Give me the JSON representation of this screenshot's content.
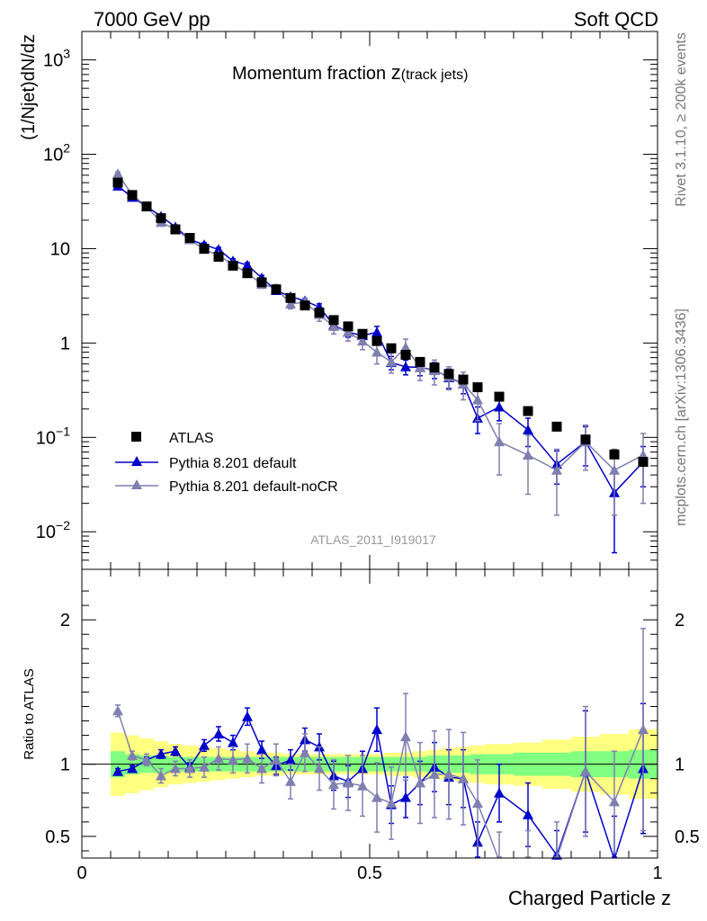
{
  "header": {
    "left": "7000 GeV pp",
    "right": "Soft QCD"
  },
  "side_labels": {
    "rivet": "Rivet 3.1.10, ≥ 200k events",
    "mcplots": "mcplots.cern.ch [arXiv:1306.3436]"
  },
  "main_panel": {
    "title_main": "Momentum fraction ",
    "title_z": "z",
    "title_sub": "(track jets)",
    "ylabel": "(1/Njet)dN/dz",
    "analysis_tag": "ATLAS_2011_I919017"
  },
  "ratio_panel": {
    "ylabel": "Ratio to ATLAS"
  },
  "xlabel": "Charged Particle z",
  "legend": [
    {
      "label": "ATLAS",
      "marker": "square",
      "color": "#000000"
    },
    {
      "label": "Pythia 8.201 default",
      "marker": "triangle",
      "color": "#0000cc"
    },
    {
      "label": "Pythia 8.201 default-noCR",
      "marker": "triangle",
      "color": "#7f7fb0"
    }
  ],
  "chart_data": [
    {
      "type": "line",
      "title": "Momentum fraction z(track jets)",
      "xlabel": "Charged Particle z",
      "ylabel": "(1/Njet)dN/dz",
      "yscale": "log",
      "xlim": [
        0,
        1
      ],
      "ylim": [
        0.004,
        2000
      ],
      "x_ticks": [
        {
          "value": 0,
          "label": "0"
        },
        {
          "value": 0.5,
          "label": "0.5"
        },
        {
          "value": 1,
          "label": "1"
        }
      ],
      "y_ticks": [
        {
          "value": 0.01,
          "label": "10",
          "exp": "−2"
        },
        {
          "value": 0.1,
          "label": "10",
          "exp": "−1"
        },
        {
          "value": 1,
          "label": "1",
          "exp": ""
        },
        {
          "value": 10,
          "label": "10",
          "exp": ""
        },
        {
          "value": 100,
          "label": "10",
          "exp": "2"
        },
        {
          "value": 1000,
          "label": "10",
          "exp": "3"
        }
      ],
      "x": [
        0.0625,
        0.0875,
        0.1125,
        0.1375,
        0.1625,
        0.1875,
        0.2125,
        0.2375,
        0.2625,
        0.2875,
        0.3125,
        0.3375,
        0.3625,
        0.3875,
        0.4125,
        0.4375,
        0.4625,
        0.4875,
        0.5125,
        0.5375,
        0.5625,
        0.5875,
        0.6125,
        0.6375,
        0.6625,
        0.6875,
        0.725,
        0.775,
        0.825,
        0.875,
        0.925,
        0.975
      ],
      "series": [
        {
          "name": "ATLAS",
          "color": "#000000",
          "marker": "square",
          "values": [
            50,
            37,
            28,
            21,
            16,
            13,
            10,
            8.2,
            6.6,
            5.5,
            4.4,
            3.7,
            3.0,
            2.5,
            2.1,
            1.75,
            1.5,
            1.25,
            1.05,
            0.88,
            0.75,
            0.63,
            0.55,
            0.47,
            0.41,
            0.34,
            0.27,
            0.19,
            0.13,
            0.095,
            0.066,
            0.055
          ]
        },
        {
          "name": "Pythia 8.201 default",
          "color": "#0000cc",
          "marker": "triangle",
          "values": [
            46,
            35,
            28,
            22,
            17,
            12.5,
            11,
            9.8,
            7.4,
            6.7,
            4.9,
            3.6,
            3.1,
            2.8,
            2.4,
            1.55,
            1.3,
            1.2,
            1.3,
            0.62,
            0.56,
            0.55,
            0.52,
            0.43,
            0.37,
            0.16,
            0.21,
            0.12,
            0.052,
            0.09,
            0.026,
            0.055
          ],
          "err": [
            2,
            1.5,
            1.2,
            1.0,
            0.8,
            0.6,
            0.6,
            0.5,
            0.4,
            0.4,
            0.3,
            0.25,
            0.2,
            0.2,
            0.2,
            0.15,
            0.15,
            0.15,
            0.2,
            0.1,
            0.1,
            0.1,
            0.1,
            0.1,
            0.08,
            0.05,
            0.06,
            0.04,
            0.02,
            0.04,
            0.02,
            0.025
          ]
        },
        {
          "name": "Pythia 8.201 default-noCR",
          "color": "#7f7fb0",
          "marker": "triangle",
          "values": [
            62,
            37,
            28,
            19,
            16,
            12.5,
            9.8,
            8.5,
            6.8,
            5.5,
            4.2,
            3.8,
            2.6,
            2.7,
            2.0,
            1.5,
            1.3,
            1.05,
            0.8,
            0.63,
            0.9,
            0.55,
            0.51,
            0.44,
            0.37,
            0.25,
            0.09,
            0.065,
            0.045,
            0.09,
            0.045,
            0.065
          ],
          "err": [
            3,
            2,
            1.5,
            1.2,
            1.0,
            0.8,
            0.7,
            0.6,
            0.5,
            0.5,
            0.4,
            0.35,
            0.3,
            0.3,
            0.3,
            0.25,
            0.25,
            0.2,
            0.2,
            0.15,
            0.2,
            0.15,
            0.15,
            0.12,
            0.12,
            0.1,
            0.05,
            0.04,
            0.03,
            0.045,
            0.03,
            0.045
          ]
        }
      ]
    },
    {
      "type": "line",
      "ylabel": "Ratio to ATLAS",
      "xlim": [
        0,
        1
      ],
      "ylim": [
        0.35,
        2.35
      ],
      "y_ticks": [
        {
          "value": 0.5,
          "label": "0.5"
        },
        {
          "value": 1,
          "label": "1"
        },
        {
          "value": 2,
          "label": "2"
        }
      ],
      "band_inner": [
        0.09,
        0.07,
        0.06,
        0.06,
        0.05,
        0.05,
        0.05,
        0.05,
        0.05,
        0.05,
        0.05,
        0.05,
        0.05,
        0.05,
        0.05,
        0.05,
        0.05,
        0.05,
        0.05,
        0.05,
        0.05,
        0.05,
        0.06,
        0.06,
        0.06,
        0.07,
        0.07,
        0.08,
        0.08,
        0.09,
        0.09,
        0.1
      ],
      "band_outer": [
        0.22,
        0.2,
        0.18,
        0.16,
        0.14,
        0.13,
        0.12,
        0.11,
        0.1,
        0.09,
        0.08,
        0.08,
        0.07,
        0.07,
        0.07,
        0.07,
        0.07,
        0.07,
        0.07,
        0.08,
        0.08,
        0.09,
        0.1,
        0.11,
        0.12,
        0.13,
        0.14,
        0.15,
        0.17,
        0.19,
        0.21,
        0.24
      ],
      "series": [
        {
          "name": "Pythia 8.201 default",
          "color": "#0000cc",
          "values": [
            0.95,
            0.97,
            1.03,
            1.07,
            1.09,
            0.98,
            1.13,
            1.21,
            1.15,
            1.33,
            1.1,
            0.99,
            1.03,
            1.17,
            1.12,
            0.92,
            0.88,
            0.97,
            1.24,
            0.72,
            0.77,
            0.87,
            0.98,
            0.91,
            0.9,
            0.46,
            0.8,
            0.65,
            0.37,
            0.95,
            0.34,
            0.97
          ],
          "err": [
            0.02,
            0.02,
            0.02,
            0.03,
            0.03,
            0.03,
            0.04,
            0.05,
            0.05,
            0.06,
            0.06,
            0.06,
            0.07,
            0.08,
            0.09,
            0.1,
            0.11,
            0.12,
            0.15,
            0.13,
            0.14,
            0.15,
            0.17,
            0.19,
            0.2,
            0.14,
            0.2,
            0.22,
            0.17,
            0.42,
            0.3,
            0.45
          ]
        },
        {
          "name": "Pythia 8.201 default-noCR",
          "color": "#7f7fb0",
          "values": [
            1.37,
            1.06,
            1.03,
            0.92,
            0.97,
            0.97,
            0.98,
            1.04,
            1.03,
            1.04,
            0.97,
            1.03,
            0.88,
            1.08,
            0.97,
            0.86,
            0.87,
            0.85,
            0.77,
            0.73,
            1.19,
            0.87,
            0.93,
            0.93,
            0.9,
            0.73,
            0.33,
            0.34,
            0.35,
            0.95,
            0.74,
            1.24
          ],
          "err": [
            0.04,
            0.03,
            0.04,
            0.05,
            0.05,
            0.06,
            0.07,
            0.08,
            0.09,
            0.1,
            0.1,
            0.11,
            0.12,
            0.13,
            0.15,
            0.17,
            0.19,
            0.21,
            0.24,
            0.25,
            0.3,
            0.28,
            0.3,
            0.31,
            0.32,
            0.3,
            0.2,
            0.2,
            0.25,
            0.45,
            0.35,
            0.7
          ]
        }
      ]
    }
  ]
}
